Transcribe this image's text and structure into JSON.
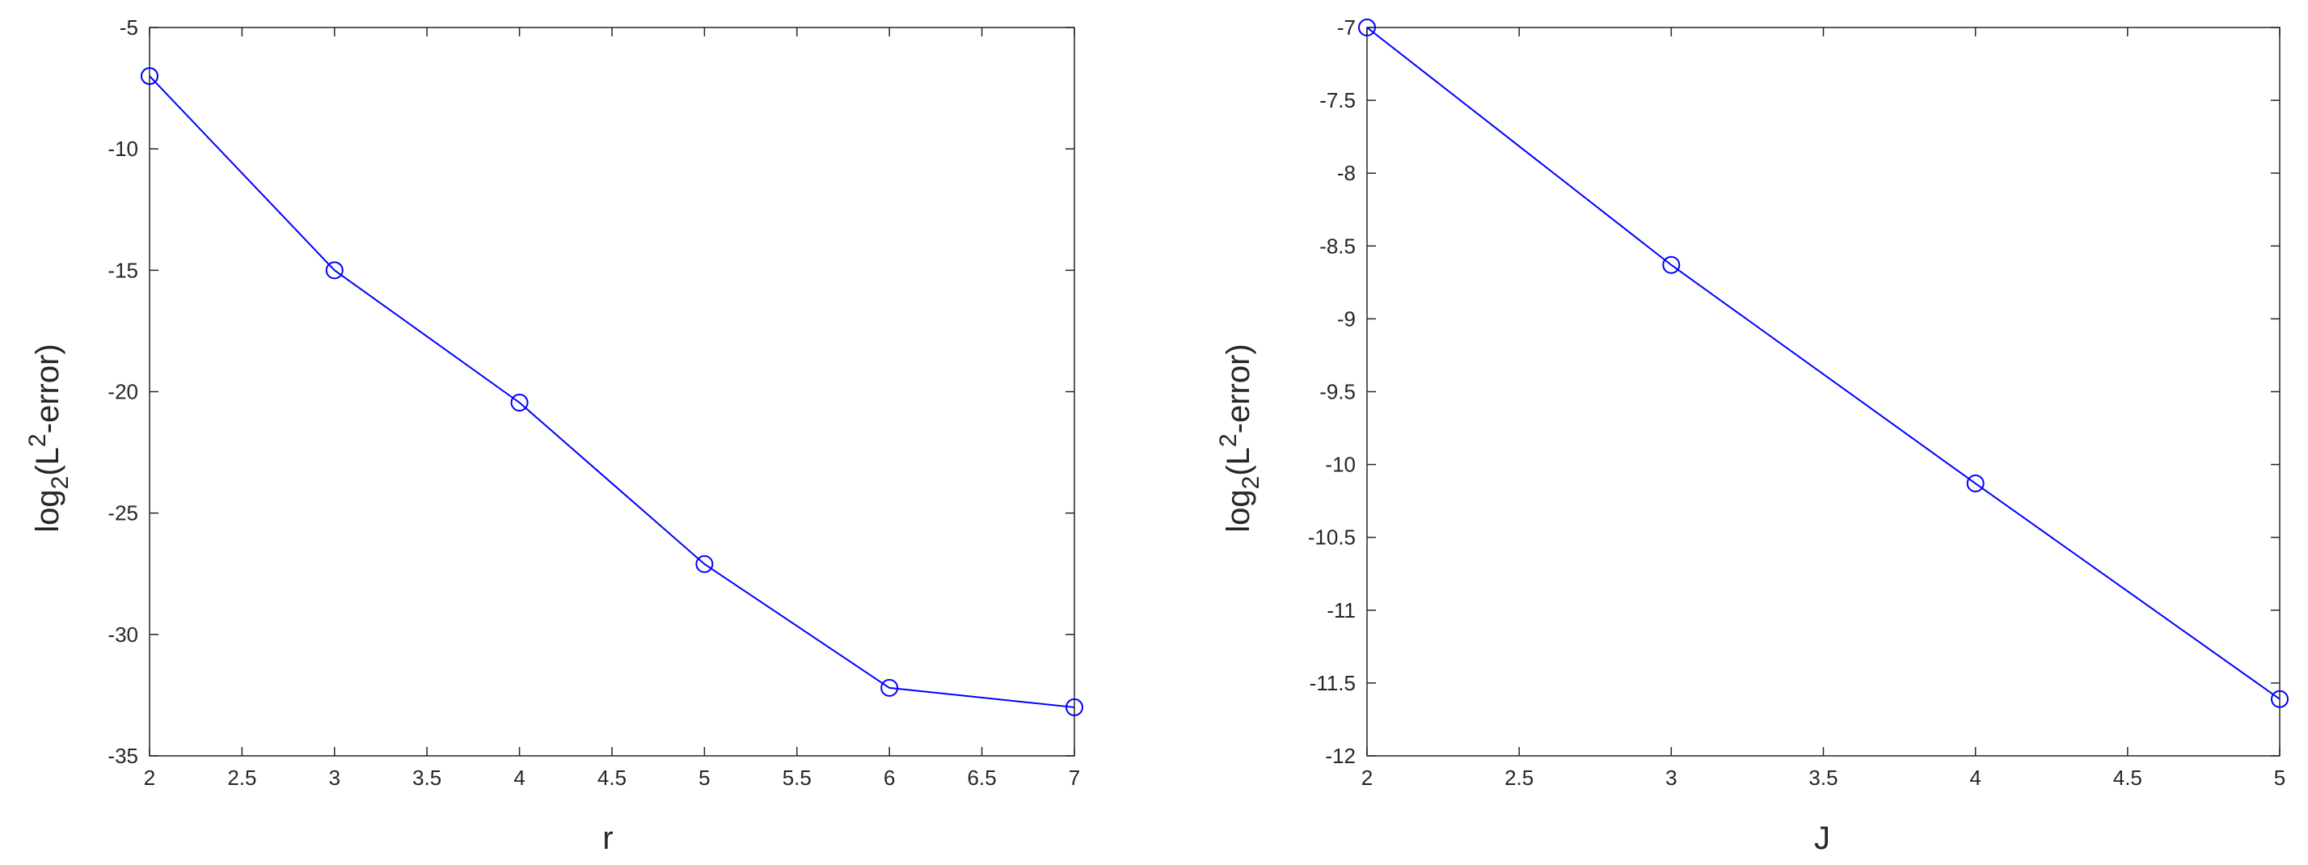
{
  "chart_data": [
    {
      "type": "line",
      "marker": "circle",
      "color": "#0000ff",
      "grid": false,
      "xlabel": "r",
      "ylabel": {
        "base": "log",
        "sub": "2",
        "prefix": "(L",
        "sup": "2",
        "suffix": "-error)"
      },
      "xlim": [
        2,
        7
      ],
      "ylim": [
        -35,
        -5
      ],
      "xticks": [
        2,
        2.5,
        3,
        3.5,
        4,
        4.5,
        5,
        5.5,
        6,
        6.5,
        7
      ],
      "xtick_labels": [
        "2",
        "2.5",
        "3",
        "3.5",
        "4",
        "4.5",
        "5",
        "5.5",
        "6",
        "6.5",
        "7"
      ],
      "yticks": [
        -35,
        -30,
        -25,
        -20,
        -15,
        -10,
        -5
      ],
      "ytick_labels": [
        "-35",
        "-30",
        "-25",
        "-20",
        "-15",
        "-10",
        "-5"
      ],
      "series": [
        {
          "x": [
            2,
            3,
            4,
            5,
            6,
            7
          ],
          "y": [
            -7.0,
            -15.0,
            -20.45,
            -27.1,
            -32.2,
            -33.0
          ]
        }
      ]
    },
    {
      "type": "line",
      "marker": "circle",
      "color": "#0000ff",
      "grid": false,
      "xlabel": "J",
      "ylabel": {
        "base": "log",
        "sub": "2",
        "prefix": "(L",
        "sup": "2",
        "suffix": "-error)"
      },
      "xlim": [
        2,
        5
      ],
      "ylim": [
        -12,
        -7
      ],
      "xticks": [
        2,
        2.5,
        3,
        3.5,
        4,
        4.5,
        5
      ],
      "xtick_labels": [
        "2",
        "2.5",
        "3",
        "3.5",
        "4",
        "4.5",
        "5"
      ],
      "yticks": [
        -12,
        -11.5,
        -11,
        -10.5,
        -10,
        -9.5,
        -9,
        -8.5,
        -8,
        -7.5,
        -7
      ],
      "ytick_labels": [
        "-12",
        "-11.5",
        "-11",
        "-10.5",
        "-10",
        "-9.5",
        "-9",
        "-8.5",
        "-8",
        "-7.5",
        "-7"
      ],
      "series": [
        {
          "x": [
            2,
            3,
            4,
            5
          ],
          "y": [
            -7.0,
            -8.63,
            -10.13,
            -11.61
          ]
        }
      ]
    }
  ]
}
